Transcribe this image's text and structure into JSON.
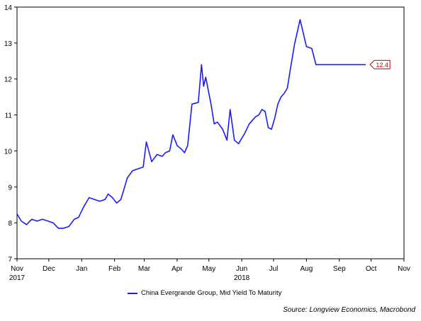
{
  "chart_data": {
    "type": "line",
    "ylim": [
      7,
      14
    ],
    "y_ticks": [
      7,
      8,
      9,
      10,
      11,
      12,
      13,
      14
    ],
    "grid": false,
    "x_ticks": [
      {
        "label": "Nov",
        "year": "2017",
        "date": "2017-10-31"
      },
      {
        "label": "Dec",
        "date": "2017-11-30"
      },
      {
        "label": "Jan",
        "date": "2017-12-31"
      },
      {
        "label": "Feb",
        "date": "2018-01-31"
      },
      {
        "label": "Mar",
        "date": "2018-02-28"
      },
      {
        "label": "Apr",
        "date": "2018-03-31"
      },
      {
        "label": "May",
        "date": "2018-04-30"
      },
      {
        "label": "Jun",
        "year": "2018",
        "date": "2018-05-31"
      },
      {
        "label": "Jul",
        "date": "2018-06-30"
      },
      {
        "label": "Aug",
        "date": "2018-07-31"
      },
      {
        "label": "Sep",
        "date": "2018-08-31"
      },
      {
        "label": "Oct",
        "date": "2018-09-30"
      },
      {
        "label": "Nov",
        "date": "2018-10-31"
      }
    ],
    "series": [
      {
        "name": "China Evergrande Group, Mid Yield To Maturity",
        "color": "#1a1aff",
        "x": [
          "2017-10-31",
          "2017-11-04",
          "2017-11-09",
          "2017-11-14",
          "2017-11-19",
          "2017-11-24",
          "2017-11-29",
          "2017-12-04",
          "2017-12-09",
          "2017-12-14",
          "2017-12-19",
          "2017-12-24",
          "2017-12-28",
          "2018-01-02",
          "2018-01-07",
          "2018-01-12",
          "2018-01-17",
          "2018-01-22",
          "2018-01-25",
          "2018-01-29",
          "2018-02-02",
          "2018-02-06",
          "2018-02-12",
          "2018-02-17",
          "2018-02-22",
          "2018-02-27",
          "2018-03-02",
          "2018-03-07",
          "2018-03-12",
          "2018-03-17",
          "2018-03-20",
          "2018-03-24",
          "2018-03-27",
          "2018-03-31",
          "2018-04-04",
          "2018-04-07",
          "2018-04-10",
          "2018-04-14",
          "2018-04-20",
          "2018-04-23",
          "2018-04-25",
          "2018-04-27",
          "2018-05-02",
          "2018-05-05",
          "2018-05-08",
          "2018-05-13",
          "2018-05-17",
          "2018-05-20",
          "2018-05-24",
          "2018-05-28",
          "2018-06-03",
          "2018-06-07",
          "2018-06-10",
          "2018-06-13",
          "2018-06-16",
          "2018-06-19",
          "2018-06-22",
          "2018-06-25",
          "2018-06-28",
          "2018-07-01",
          "2018-07-04",
          "2018-07-07",
          "2018-07-10",
          "2018-07-13",
          "2018-07-16",
          "2018-07-20",
          "2018-07-25",
          "2018-07-31",
          "2018-08-05",
          "2018-08-09",
          "2018-08-14",
          "2018-08-19",
          "2018-08-24",
          "2018-08-29",
          "2018-09-02",
          "2018-09-06",
          "2018-09-10",
          "2018-09-15",
          "2018-09-20",
          "2018-09-25",
          "2018-10-01",
          "2018-10-05",
          "2018-10-09",
          "2018-10-12",
          "2018-10-15",
          "2018-10-18",
          "2018-10-20",
          "2018-10-23",
          "2018-10-25"
        ],
        "values": [
          8.25,
          8.05,
          7.95,
          8.1,
          8.05,
          8.1,
          8.05,
          8.0,
          7.85,
          7.85,
          7.9,
          8.1,
          8.15,
          8.45,
          8.7,
          8.65,
          8.6,
          8.65,
          8.8,
          8.7,
          8.55,
          8.65,
          9.25,
          9.45,
          9.5,
          9.55,
          10.25,
          9.7,
          9.9,
          9.85,
          9.95,
          10.0,
          10.45,
          10.15,
          10.05,
          9.95,
          10.15,
          11.3,
          11.35,
          12.4,
          11.8,
          12.05,
          11.3,
          10.75,
          10.8,
          10.6,
          10.3,
          11.15,
          10.3,
          10.2,
          10.5,
          10.75,
          10.85,
          10.95,
          11.0,
          11.15,
          11.1,
          10.65,
          10.6,
          10.9,
          11.3,
          11.5,
          11.6,
          11.75,
          12.3,
          13.0,
          13.65,
          12.9,
          12.85,
          12.4,
          12.4,
          12.4,
          12.4,
          12.4,
          12.4,
          12.4,
          12.4,
          12.4,
          12.4,
          12.4,
          12.4,
          12.4,
          12.4,
          12.4,
          12.4,
          12.4,
          12.4,
          12.4,
          12.4
        ],
        "last_value_label": "12.4"
      }
    ],
    "legend_position": "bottom-center"
  },
  "legend_label": "China Evergrande Group, Mid Yield To Maturity",
  "source_text": "Source: Longview Economics, Macrobond",
  "colors": {
    "series": "#1a1aff",
    "badge_text": "#cc0000"
  }
}
